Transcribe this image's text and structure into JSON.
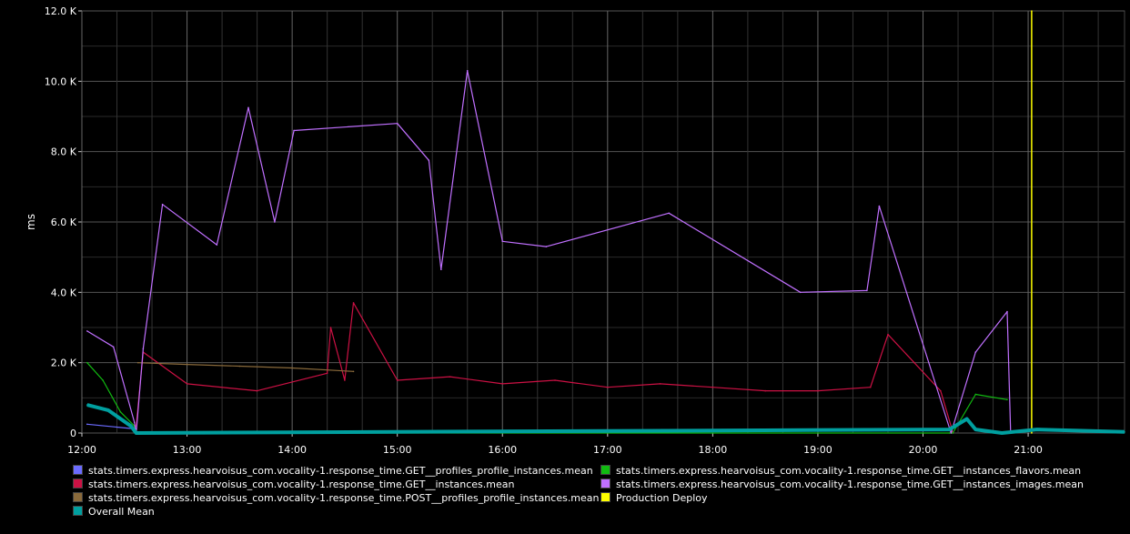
{
  "chart_data": {
    "type": "line",
    "ylabel": "ms",
    "ylim": [
      0,
      12000
    ],
    "xlim": [
      "12:00",
      "21:55"
    ],
    "y_ticks": [
      "0",
      "2.0 K",
      "4.0 K",
      "6.0 K",
      "8.0 K",
      "10.0 K",
      "12.0 K"
    ],
    "x_ticks": [
      "12:00",
      "13:00",
      "14:00",
      "15:00",
      "16:00",
      "17:00",
      "18:00",
      "19:00",
      "20:00",
      "21:00"
    ],
    "grid": true,
    "legend_position": "bottom",
    "series": [
      {
        "name": "stats.timers.express.hearvoisus_com.vocality-1.response_time.GET__profiles_profile_instances.mean",
        "color": "#6b6bff",
        "points": [
          [
            "12:03",
            250
          ],
          [
            "12:30",
            120
          ],
          [
            "12:31",
            0
          ],
          [
            "12:32",
            0
          ],
          [
            "12:34",
            0
          ]
        ]
      },
      {
        "name": "stats.timers.express.hearvoisus_com.vocality-1.response_time.GET__instances.mean",
        "color": "#cc1144",
        "points": [
          [
            "12:31",
            200
          ],
          [
            "12:35",
            2300
          ],
          [
            "13:00",
            1400
          ],
          [
            "13:40",
            1200
          ],
          [
            "14:20",
            1700
          ],
          [
            "14:22",
            3000
          ],
          [
            "14:30",
            1500
          ],
          [
            "14:35",
            3700
          ],
          [
            "15:00",
            1500
          ],
          [
            "15:30",
            1600
          ],
          [
            "16:00",
            1400
          ],
          [
            "16:30",
            1500
          ],
          [
            "17:00",
            1300
          ],
          [
            "17:30",
            1400
          ],
          [
            "18:00",
            1300
          ],
          [
            "18:30",
            1200
          ],
          [
            "19:00",
            1200
          ],
          [
            "19:30",
            1300
          ],
          [
            "19:40",
            2800
          ],
          [
            "19:55",
            2000
          ],
          [
            "20:10",
            1200
          ],
          [
            "20:16",
            200
          ],
          [
            "20:17",
            0
          ]
        ]
      },
      {
        "name": "stats.timers.express.hearvoisus_com.vocality-1.response_time.POST__profiles_profile_instances.mean",
        "color": "#8a6a3b",
        "points": [
          [
            "12:32",
            2000
          ],
          [
            "13:00",
            1950
          ],
          [
            "13:30",
            1900
          ],
          [
            "14:00",
            1850
          ],
          [
            "14:35",
            1750
          ]
        ]
      },
      {
        "name": "stats.timers.express.hearvoisus_com.vocality-1.response_time.GET__instances_flavors.mean",
        "color": "#11bb11",
        "points": [
          [
            "12:03",
            2000
          ],
          [
            "12:12",
            1500
          ],
          [
            "12:22",
            600
          ],
          [
            "12:30",
            200
          ],
          [
            "12:31",
            0
          ],
          [
            "20:15",
            0
          ],
          [
            "20:17",
            0
          ],
          [
            "20:30",
            1100
          ],
          [
            "20:48",
            950
          ]
        ]
      },
      {
        "name": "stats.timers.express.hearvoisus_com.vocality-1.response_time.GET__instances_images.mean",
        "color": "#c070ff",
        "points": [
          [
            "12:03",
            2900
          ],
          [
            "12:18",
            2450
          ],
          [
            "12:30",
            300
          ],
          [
            "12:31",
            0
          ],
          [
            "12:35",
            2400
          ],
          [
            "12:46",
            6500
          ],
          [
            "13:17",
            5350
          ],
          [
            "13:35",
            9250
          ],
          [
            "13:50",
            6000
          ],
          [
            "14:01",
            8600
          ],
          [
            "15:00",
            8800
          ],
          [
            "15:18",
            7750
          ],
          [
            "15:25",
            4650
          ],
          [
            "15:40",
            10300
          ],
          [
            "16:00",
            5450
          ],
          [
            "16:25",
            5300
          ],
          [
            "17:35",
            6250
          ],
          [
            "18:50",
            4000
          ],
          [
            "19:28",
            4050
          ],
          [
            "19:35",
            6450
          ],
          [
            "20:16",
            0
          ],
          [
            "20:30",
            2300
          ],
          [
            "20:48",
            3450
          ],
          [
            "20:50",
            0
          ]
        ]
      },
      {
        "name": "Production Deploy",
        "color": "#ffff00",
        "points": [
          [
            "21:02",
            0
          ],
          [
            "21:02",
            12000
          ]
        ]
      },
      {
        "name": "Overall Mean",
        "color": "#009f9f",
        "points": [
          [
            "12:03",
            800
          ],
          [
            "12:15",
            650
          ],
          [
            "12:28",
            200
          ],
          [
            "12:31",
            0
          ],
          [
            "20:15",
            100
          ],
          [
            "20:25",
            400
          ],
          [
            "20:30",
            100
          ],
          [
            "20:45",
            0
          ],
          [
            "21:05",
            100
          ],
          [
            "21:55",
            30
          ]
        ]
      }
    ]
  },
  "legend": [
    {
      "label": "stats.timers.express.hearvoisus_com.vocality-1.response_time.GET__profiles_profile_instances.mean",
      "color": "#6b6bff"
    },
    {
      "label": "stats.timers.express.hearvoisus_com.vocality-1.response_time.GET__instances.mean",
      "color": "#cc1144"
    },
    {
      "label": "stats.timers.express.hearvoisus_com.vocality-1.response_time.POST__profiles_profile_instances.mean",
      "color": "#8a6a3b"
    },
    {
      "label": "Overall Mean",
      "color": "#009f9f"
    },
    {
      "label": "stats.timers.express.hearvoisus_com.vocality-1.response_time.GET__instances_flavors.mean",
      "color": "#11bb11"
    },
    {
      "label": "Production Deploy",
      "color": "#ffff00"
    },
    {
      "label": "stats.timers.express.hearvoisus_com.vocality-1.response_time.GET__instances_images.mean",
      "color": "#c070ff"
    }
  ]
}
